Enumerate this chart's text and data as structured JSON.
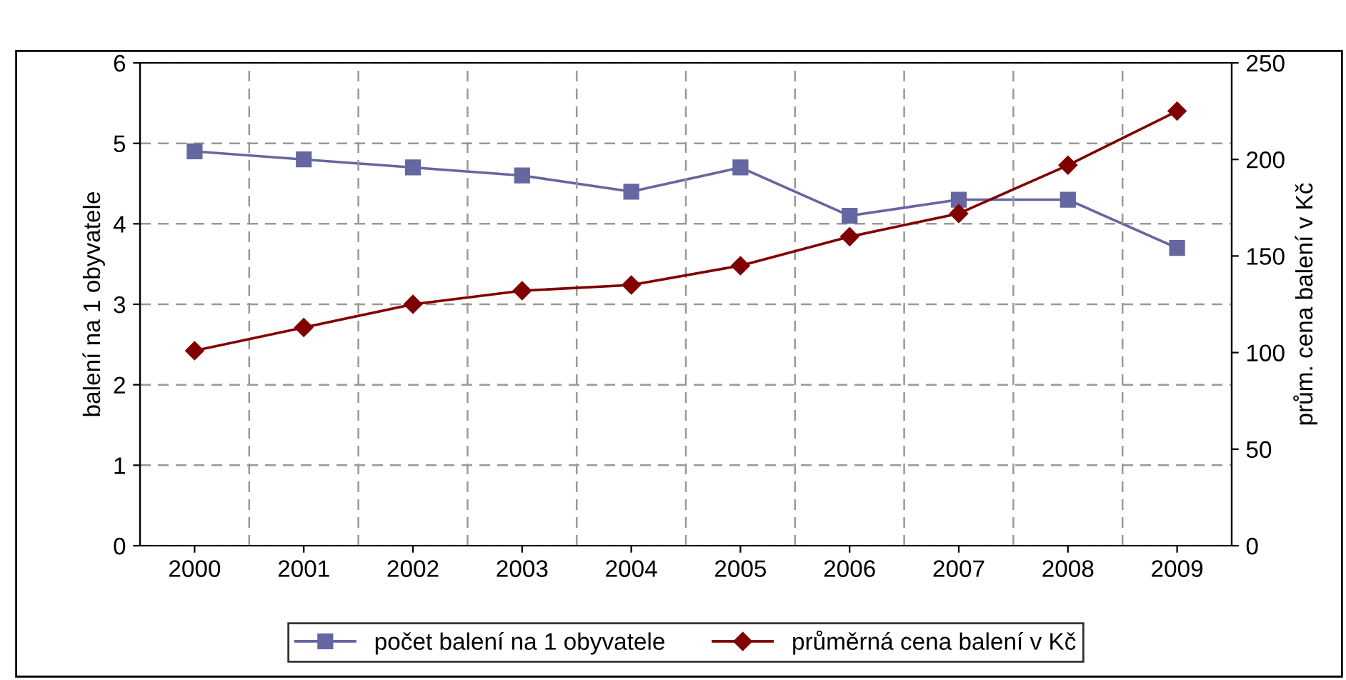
{
  "chart_data": {
    "type": "line",
    "ylabel": "balení na 1 obyvatele",
    "y2label": "prům. cena balení v Kč",
    "categories": [
      "2000",
      "2001",
      "2002",
      "2003",
      "2004",
      "2005",
      "2006",
      "2007",
      "2008",
      "2009"
    ],
    "series": [
      {
        "name": "počet balení na 1 obyvatele",
        "color": "#6666a0",
        "marker": "square",
        "values": [
          4.9,
          4.8,
          4.7,
          4.6,
          4.4,
          4.7,
          4.1,
          4.3,
          4.3,
          3.7
        ]
      },
      {
        "name": "průměrná cena balení v Kč",
        "color": "#800000",
        "marker": "diamond",
        "axis": "y2",
        "values": [
          101,
          113,
          125,
          132,
          135,
          145,
          160,
          172,
          197,
          225
        ]
      }
    ],
    "ylim": [
      0,
      6
    ],
    "yticks": [
      0,
      1,
      2,
      3,
      4,
      5,
      6
    ],
    "y2lim": [
      0,
      250
    ],
    "y2ticks": [
      0,
      50,
      100,
      150,
      200,
      250
    ],
    "grid": true,
    "legend": "bottom",
    "line_style": "solid"
  }
}
